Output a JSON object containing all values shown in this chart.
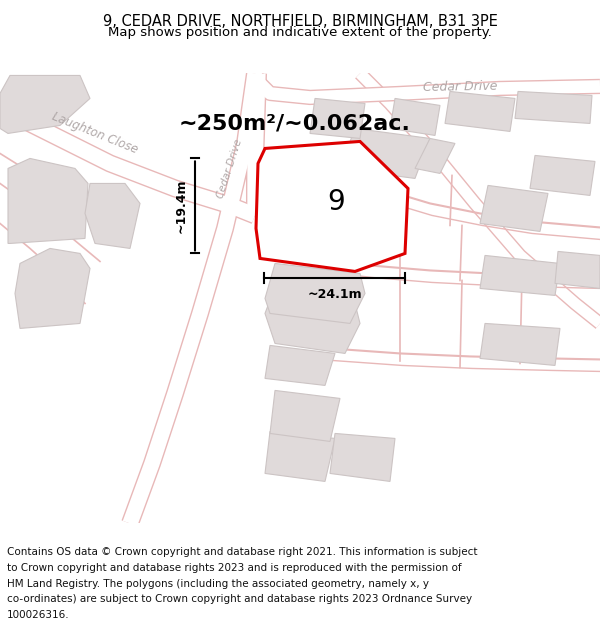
{
  "title": "9, CEDAR DRIVE, NORTHFIELD, BIRMINGHAM, B31 3PE",
  "subtitle": "Map shows position and indicative extent of the property.",
  "area_label": "~250m²/~0.062ac.",
  "dim_label_h": "~19.4m",
  "dim_label_w": "~24.1m",
  "property_number": "9",
  "map_bg": "#f8f4f4",
  "road_line_color": "#e8b8b8",
  "road_fill_color": "#f0e8e8",
  "building_fill": "#e0dada",
  "building_edge": "#ccc4c4",
  "property_edge": "#dd0000",
  "property_fill": "#e8e2e2",
  "street_label_color": "#b0a8a8",
  "footer_lines": [
    "Contains OS data © Crown copyright and database right 2021. This information is subject",
    "to Crown copyright and database rights 2023 and is reproduced with the permission of",
    "HM Land Registry. The polygons (including the associated geometry, namely x, y",
    "co-ordinates) are subject to Crown copyright and database rights 2023 Ordnance Survey",
    "100026316."
  ],
  "title_fontsize": 10.5,
  "subtitle_fontsize": 9.5,
  "footer_fontsize": 7.5,
  "area_fontsize": 16,
  "number_fontsize": 20
}
